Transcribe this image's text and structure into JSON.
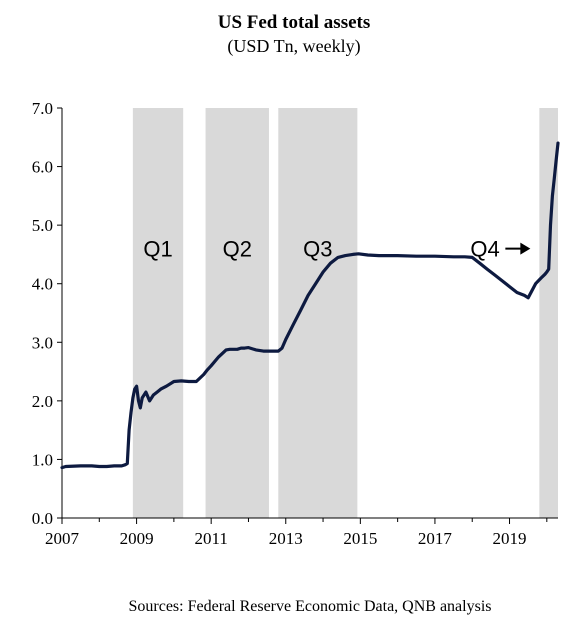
{
  "chart_data": {
    "type": "line",
    "title": "US Fed total assets",
    "subtitle": "(USD Tn, weekly)",
    "source": "Sources: Federal Reserve Economic Data, QNB analysis",
    "xlim": [
      2007,
      2020.3
    ],
    "ylim": [
      0,
      7
    ],
    "x_ticks": [
      2007,
      2009,
      2011,
      2013,
      2015,
      2017,
      2019
    ],
    "x_tick_labels": [
      "2007",
      "2009",
      "2011",
      "2013",
      "2015",
      "2017",
      "2019"
    ],
    "y_ticks": [
      0,
      1,
      2,
      3,
      4,
      5,
      6,
      7
    ],
    "y_tick_labels": [
      "0.0",
      "1.0",
      "2.0",
      "3.0",
      "4.0",
      "5.0",
      "6.0",
      "7.0"
    ],
    "shaded_periods": [
      {
        "label": "Q1",
        "start": 2008.9,
        "end": 2010.25
      },
      {
        "label": "Q2",
        "start": 2010.85,
        "end": 2012.55
      },
      {
        "label": "Q3",
        "start": 2012.8,
        "end": 2014.92
      },
      {
        "label": "Q4",
        "start": 2019.8,
        "end": 2020.3
      }
    ],
    "series": [
      {
        "color": "#0d1a40",
        "x": [
          2007.0,
          2007.1,
          2007.5,
          2007.8,
          2008.0,
          2008.2,
          2008.4,
          2008.6,
          2008.7,
          2008.75,
          2008.8,
          2008.85,
          2008.9,
          2008.95,
          2009.0,
          2009.05,
          2009.1,
          2009.15,
          2009.25,
          2009.35,
          2009.45,
          2009.55,
          2009.65,
          2009.8,
          2010.0,
          2010.2,
          2010.4,
          2010.6,
          2010.8,
          2010.9,
          2011.0,
          2011.2,
          2011.4,
          2011.5,
          2011.7,
          2011.8,
          2011.9,
          2012.0,
          2012.2,
          2012.4,
          2012.6,
          2012.8,
          2012.9,
          2013.0,
          2013.2,
          2013.4,
          2013.6,
          2013.8,
          2014.0,
          2014.2,
          2014.4,
          2014.6,
          2014.8,
          2014.95,
          2015.2,
          2015.5,
          2016.0,
          2016.5,
          2017.0,
          2017.5,
          2017.8,
          2018.0,
          2018.2,
          2018.4,
          2018.6,
          2018.8,
          2019.0,
          2019.2,
          2019.4,
          2019.5,
          2019.6,
          2019.7,
          2019.85,
          2019.95,
          2020.0,
          2020.05,
          2020.1,
          2020.15,
          2020.2,
          2020.25,
          2020.3
        ],
        "y": [
          0.86,
          0.88,
          0.89,
          0.89,
          0.88,
          0.88,
          0.89,
          0.89,
          0.91,
          0.93,
          1.5,
          1.8,
          2.05,
          2.2,
          2.25,
          2.0,
          1.88,
          2.05,
          2.15,
          2.0,
          2.1,
          2.15,
          2.2,
          2.25,
          2.33,
          2.34,
          2.33,
          2.33,
          2.45,
          2.53,
          2.6,
          2.75,
          2.87,
          2.88,
          2.88,
          2.9,
          2.9,
          2.91,
          2.87,
          2.85,
          2.85,
          2.85,
          2.9,
          3.05,
          3.3,
          3.55,
          3.8,
          4.0,
          4.2,
          4.35,
          4.45,
          4.48,
          4.5,
          4.51,
          4.49,
          4.48,
          4.48,
          4.47,
          4.47,
          4.46,
          4.46,
          4.45,
          4.35,
          4.25,
          4.15,
          4.05,
          3.95,
          3.85,
          3.8,
          3.76,
          3.88,
          4.0,
          4.1,
          4.16,
          4.2,
          4.25,
          5.0,
          5.5,
          5.8,
          6.1,
          6.4
        ]
      }
    ],
    "annotation": {
      "text": "Q4",
      "arrow": true
    },
    "grid": false,
    "legend": "none"
  }
}
